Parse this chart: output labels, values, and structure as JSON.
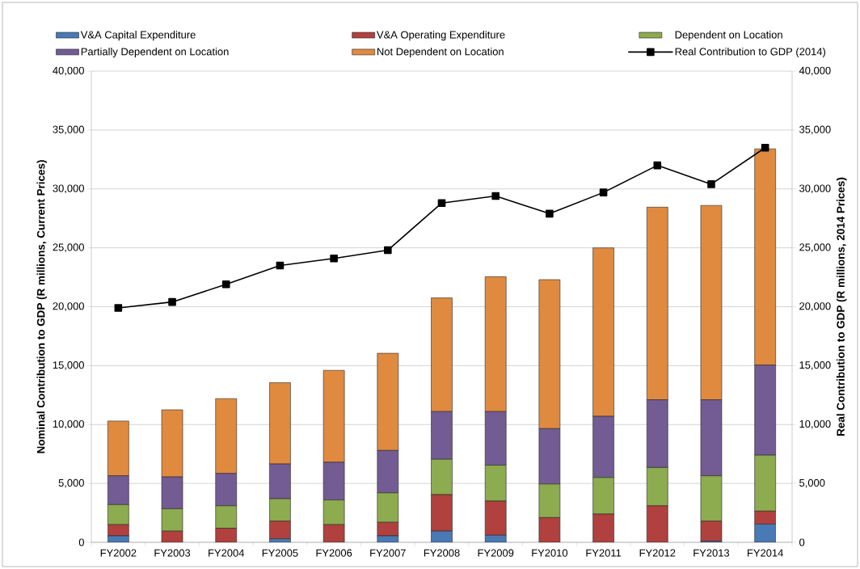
{
  "chart_data": {
    "type": "bar",
    "stacked": true,
    "ylabel": "Nominal Contribution to GDP (R millions, Current Prices)",
    "y2label": "Real Contribution to GDP (R millions, 2014 Prices)",
    "categories": [
      "FY2002",
      "FY2003",
      "FY2004",
      "FY2005",
      "FY2006",
      "FY2007",
      "FY2008",
      "FY2009",
      "FY2010",
      "FY2011",
      "FY2012",
      "FY2013",
      "FY2014"
    ],
    "series": [
      {
        "name": "V&A Capital Expenditure",
        "color": "#4a7ab5",
        "values": [
          550,
          0,
          0,
          300,
          0,
          550,
          950,
          600,
          0,
          0,
          0,
          100,
          1550
        ]
      },
      {
        "name": "V&A Operating Expenditure",
        "color": "#b0413e",
        "values": [
          950,
          950,
          1200,
          1500,
          1500,
          1150,
          3100,
          2900,
          2100,
          2400,
          3100,
          1700,
          1100
        ]
      },
      {
        "name": "Dependent on Location",
        "color": "#8dab4f",
        "values": [
          1700,
          1900,
          1900,
          1900,
          2100,
          2500,
          3000,
          3050,
          2850,
          3100,
          3250,
          3850,
          4750
        ]
      },
      {
        "name": "Partially Dependent on Location",
        "color": "#735b93",
        "values": [
          2450,
          2700,
          2750,
          2950,
          3200,
          3600,
          4050,
          4550,
          4700,
          5200,
          5750,
          6450,
          7650
        ]
      },
      {
        "name": "Not Dependent on Location",
        "color": "#e08a40",
        "values": [
          4650,
          5700,
          6350,
          6900,
          7800,
          8250,
          9650,
          11450,
          12650,
          14300,
          16350,
          16500,
          18350
        ]
      },
      {
        "name": "Real Contribution to GDP (2014)",
        "type": "line",
        "axis": "y2",
        "color": "#000000",
        "values": [
          19900,
          20400,
          21900,
          23500,
          24100,
          24800,
          28800,
          29400,
          27900,
          29700,
          32000,
          30400,
          33500
        ]
      }
    ],
    "ylim": [
      0,
      40000
    ],
    "yticks": [
      0,
      {
        "value": 5000,
        "label": "5,000"
      },
      {
        "value": 10000,
        "label": "10,000"
      },
      {
        "value": 15000,
        "label": "15,000"
      },
      {
        "value": 20000,
        "label": "20,000"
      },
      {
        "value": 25000,
        "label": "25,000"
      },
      {
        "value": 30000,
        "label": "30,000"
      },
      {
        "value": 35000,
        "label": "35,000"
      },
      {
        "value": 40000,
        "label": "40,000"
      }
    ],
    "y2lim": [
      0,
      40000
    ],
    "y2ticks": [
      0,
      {
        "value": 5000,
        "label": "5,000"
      },
      {
        "value": 10000,
        "label": "10,000"
      },
      {
        "value": 15000,
        "label": "15,000"
      },
      {
        "value": 20000,
        "label": "20,000"
      },
      {
        "value": 25000,
        "label": "25,000"
      },
      {
        "value": 30000,
        "label": "30,000"
      },
      {
        "value": 35000,
        "label": "35,000"
      },
      {
        "value": 40000,
        "label": "40,000"
      }
    ],
    "grid": "y",
    "legend": "top",
    "marker": "square"
  }
}
